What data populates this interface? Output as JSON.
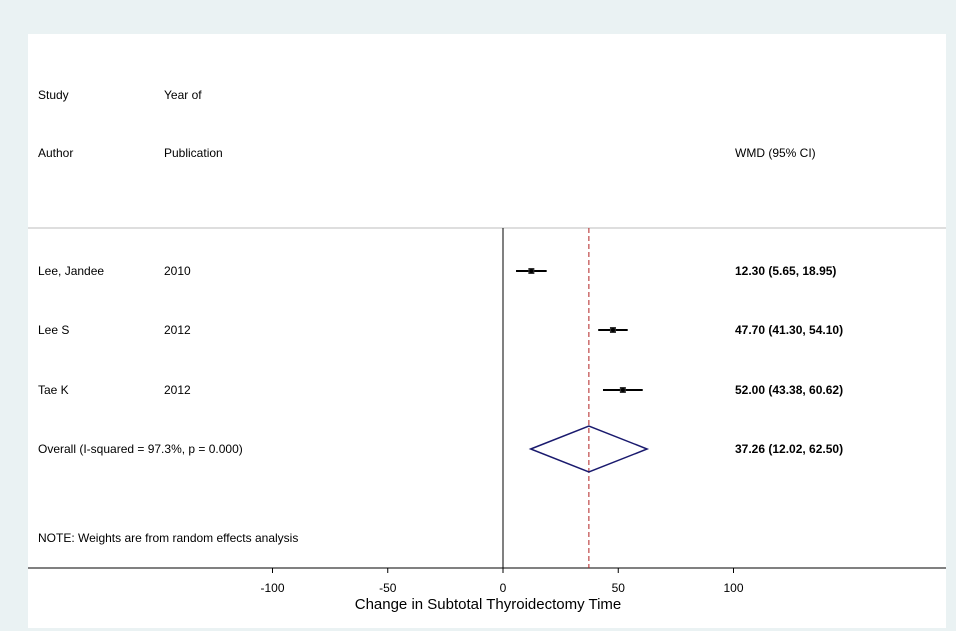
{
  "header": {
    "col1_line1": "Study",
    "col1_line2": "Author",
    "col2_line1": "Year of",
    "col2_line2": "Publication",
    "col3": "WMD (95% CI)"
  },
  "note": "NOTE: Weights are from random effects analysis",
  "chart_data": {
    "type": "forest",
    "xlabel": "Change in Subtotal Thyroidectomy Time",
    "xlim": [
      -100,
      100
    ],
    "xticks": [
      -100,
      -50,
      0,
      50,
      100
    ],
    "null_line": 0,
    "overall_line": 37.26,
    "studies": [
      {
        "author": "Lee, Jandee",
        "year": "2010",
        "est": 12.3,
        "lo": 5.65,
        "hi": 18.95,
        "label": "12.30 (5.65, 18.95)"
      },
      {
        "author": "Lee S",
        "year": "2012",
        "est": 47.7,
        "lo": 41.3,
        "hi": 54.1,
        "label": "47.70 (41.30, 54.10)"
      },
      {
        "author": "Tae K",
        "year": "2012",
        "est": 52.0,
        "lo": 43.38,
        "hi": 60.62,
        "label": "52.00 (43.38, 60.62)"
      }
    ],
    "overall": {
      "label_text": "Overall  (I-squared = 97.3%, p = 0.000)",
      "est": 37.26,
      "lo": 12.02,
      "hi": 62.5,
      "label": "37.26 (12.02, 62.50)"
    },
    "colors": {
      "diamond": "#1a1a6e",
      "overall_line": "#b22222",
      "marker": "#000000"
    }
  }
}
